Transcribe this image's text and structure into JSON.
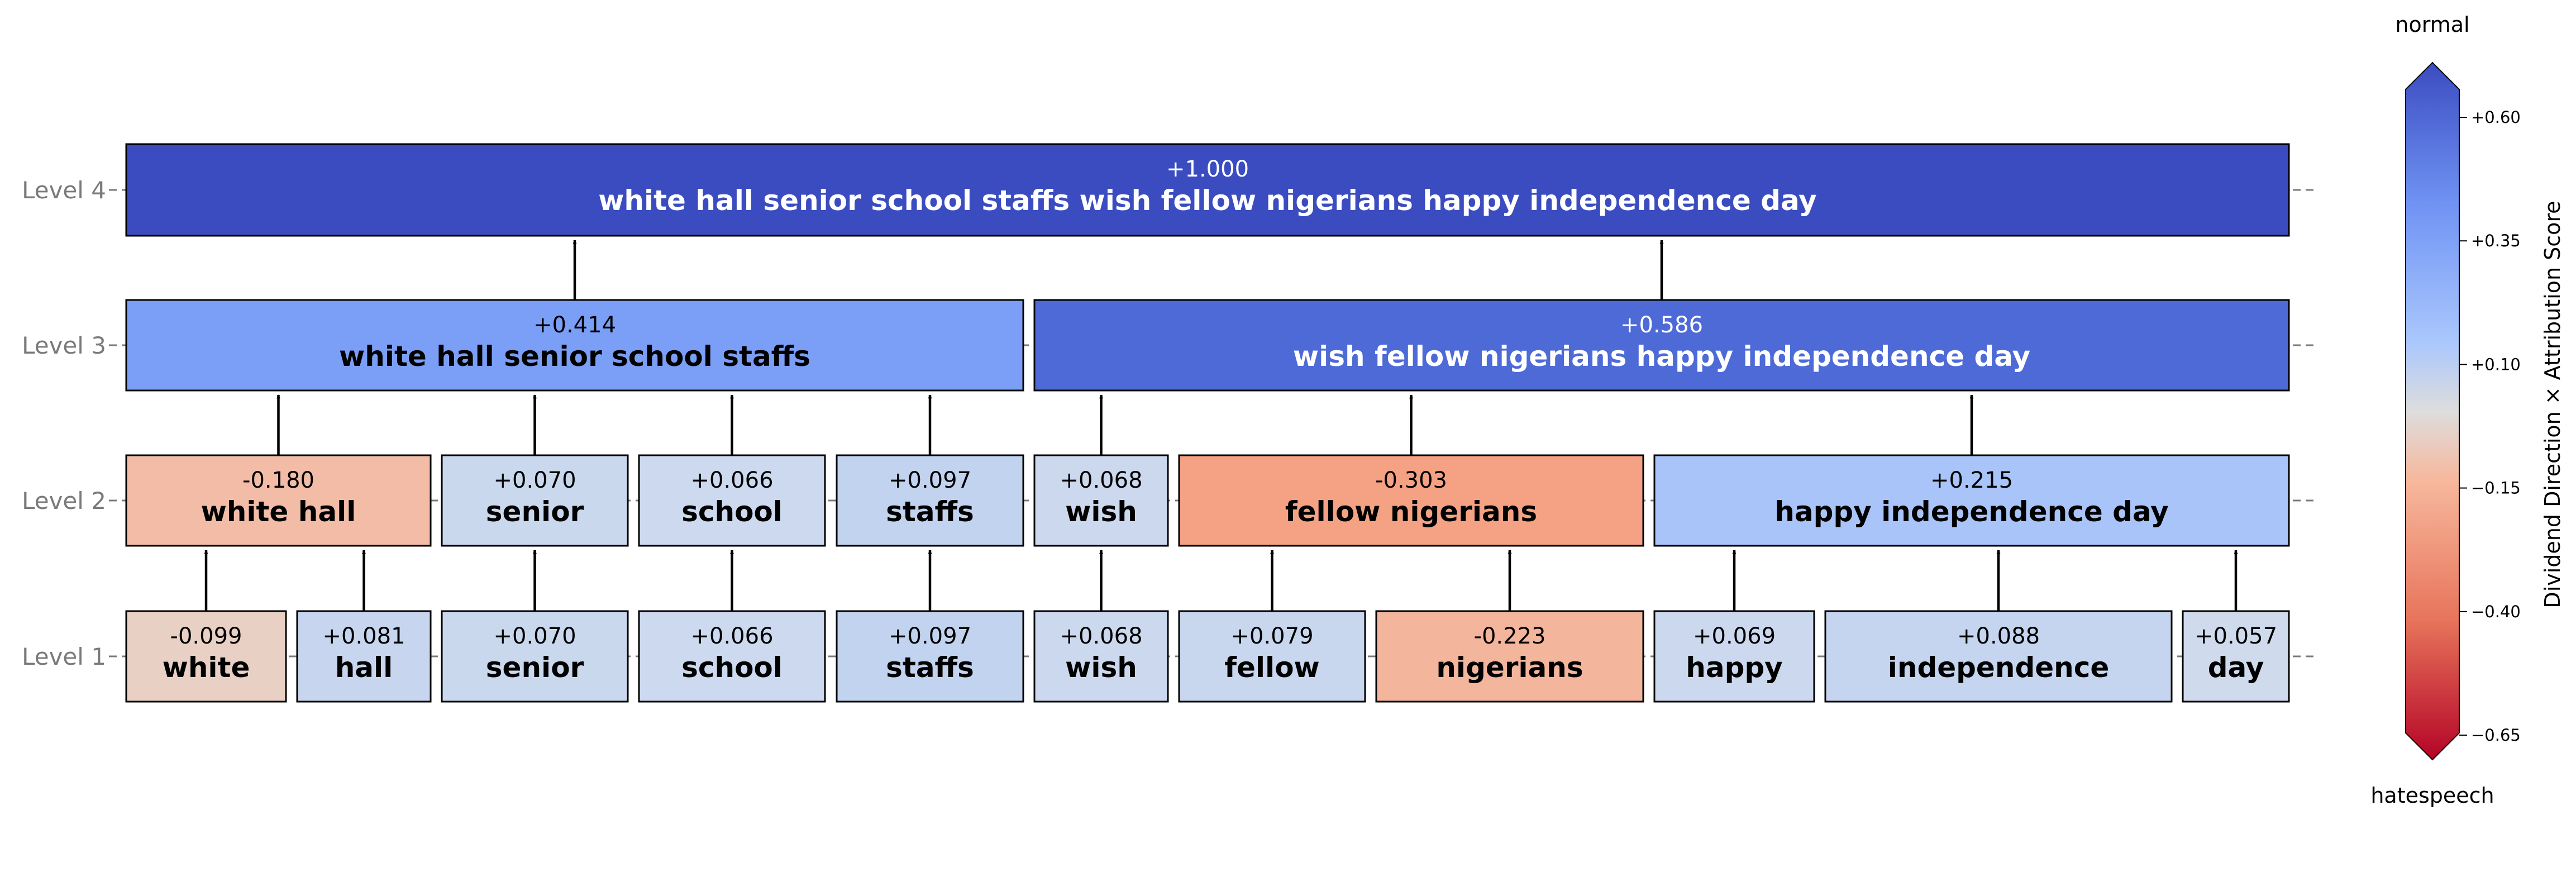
{
  "levels": [
    {
      "id": 4,
      "label": "Level 4"
    },
    {
      "id": 3,
      "label": "Level 3"
    },
    {
      "id": 2,
      "label": "Level 2"
    },
    {
      "id": 1,
      "label": "Level 1"
    }
  ],
  "nodes": [
    {
      "id": "l1-white",
      "level": 1,
      "score": "-0.099",
      "text": "white",
      "color": "#e8d0c4"
    },
    {
      "id": "l1-hall",
      "level": 1,
      "score": "+0.081",
      "text": "hall",
      "color": "#c7d6ee"
    },
    {
      "id": "l1-senior",
      "level": 1,
      "score": "+0.070",
      "text": "senior",
      "color": "#cad8ee"
    },
    {
      "id": "l1-school",
      "level": 1,
      "score": "+0.066",
      "text": "school",
      "color": "#ccd9ee"
    },
    {
      "id": "l1-staffs",
      "level": 1,
      "score": "+0.097",
      "text": "staffs",
      "color": "#c2d3ef"
    },
    {
      "id": "l1-wish",
      "level": 1,
      "score": "+0.068",
      "text": "wish",
      "color": "#cbd8ee"
    },
    {
      "id": "l1-fellow",
      "level": 1,
      "score": "+0.079",
      "text": "fellow",
      "color": "#c8d6ee"
    },
    {
      "id": "l1-nigerians",
      "level": 1,
      "score": "-0.223",
      "text": "nigerians",
      "color": "#f4b59d"
    },
    {
      "id": "l1-happy",
      "level": 1,
      "score": "+0.069",
      "text": "happy",
      "color": "#cbd8ee"
    },
    {
      "id": "l1-independence",
      "level": 1,
      "score": "+0.088",
      "text": "independence",
      "color": "#c5d5ef"
    },
    {
      "id": "l1-day",
      "level": 1,
      "score": "+0.057",
      "text": "day",
      "color": "#cfdaed"
    },
    {
      "id": "l2-white-hall",
      "level": 2,
      "score": "-0.180",
      "text": "white hall",
      "color": "#f2bca7"
    },
    {
      "id": "l2-senior",
      "level": 2,
      "score": "+0.070",
      "text": "senior",
      "color": "#cad8ee"
    },
    {
      "id": "l2-school",
      "level": 2,
      "score": "+0.066",
      "text": "school",
      "color": "#ccd9ee"
    },
    {
      "id": "l2-staffs",
      "level": 2,
      "score": "+0.097",
      "text": "staffs",
      "color": "#c2d3ef"
    },
    {
      "id": "l2-wish",
      "level": 2,
      "score": "+0.068",
      "text": "wish",
      "color": "#cbd8ee"
    },
    {
      "id": "l2-fellow-nigerians",
      "level": 2,
      "score": "-0.303",
      "text": "fellow nigerians",
      "color": "#f4a283"
    },
    {
      "id": "l2-happy-independence-day",
      "level": 2,
      "score": "+0.215",
      "text": "happy independence day",
      "color": "#a8c4f8"
    },
    {
      "id": "l3-left",
      "level": 3,
      "score": "+0.414",
      "text": "white hall senior school staffs",
      "color": "#7b9ff6"
    },
    {
      "id": "l3-right",
      "level": 3,
      "score": "+0.586",
      "text": "wish fellow nigerians happy independence day",
      "color": "#4d6ad7"
    },
    {
      "id": "l4-root",
      "level": 4,
      "score": "+1.000",
      "text": "white hall senior school staffs wish fellow nigerians happy independence day",
      "color": "#3a4cc0"
    }
  ],
  "edges": [
    [
      "l1-white",
      "l2-white-hall"
    ],
    [
      "l1-hall",
      "l2-white-hall"
    ],
    [
      "l1-senior",
      "l2-senior"
    ],
    [
      "l1-school",
      "l2-school"
    ],
    [
      "l1-staffs",
      "l2-staffs"
    ],
    [
      "l1-wish",
      "l2-wish"
    ],
    [
      "l1-fellow",
      "l2-fellow-nigerians"
    ],
    [
      "l1-nigerians",
      "l2-fellow-nigerians"
    ],
    [
      "l1-happy",
      "l2-happy-independence-day"
    ],
    [
      "l1-independence",
      "l2-happy-independence-day"
    ],
    [
      "l1-day",
      "l2-happy-independence-day"
    ],
    [
      "l2-white-hall",
      "l3-left"
    ],
    [
      "l2-senior",
      "l3-left"
    ],
    [
      "l2-school",
      "l3-left"
    ],
    [
      "l2-staffs",
      "l3-left"
    ],
    [
      "l2-wish",
      "l3-right"
    ],
    [
      "l2-fellow-nigerians",
      "l3-right"
    ],
    [
      "l2-happy-independence-day",
      "l3-right"
    ],
    [
      "l3-left",
      "l4-root"
    ],
    [
      "l3-right",
      "l4-root"
    ]
  ],
  "colorbar": {
    "top_label": "normal",
    "bottom_label": "hatespeech",
    "axis_label": "Dividend Direction × Attribution Score",
    "ticks": [
      "+0.60",
      "+0.35",
      "+0.10",
      "−0.15",
      "−0.40",
      "−0.65"
    ],
    "range": [
      -0.65,
      0.6
    ],
    "colormap": "coolwarm (reversed)",
    "color_top": "#3b4cc0",
    "color_mid": "#dddddd",
    "color_bottom": "#b40426"
  }
}
